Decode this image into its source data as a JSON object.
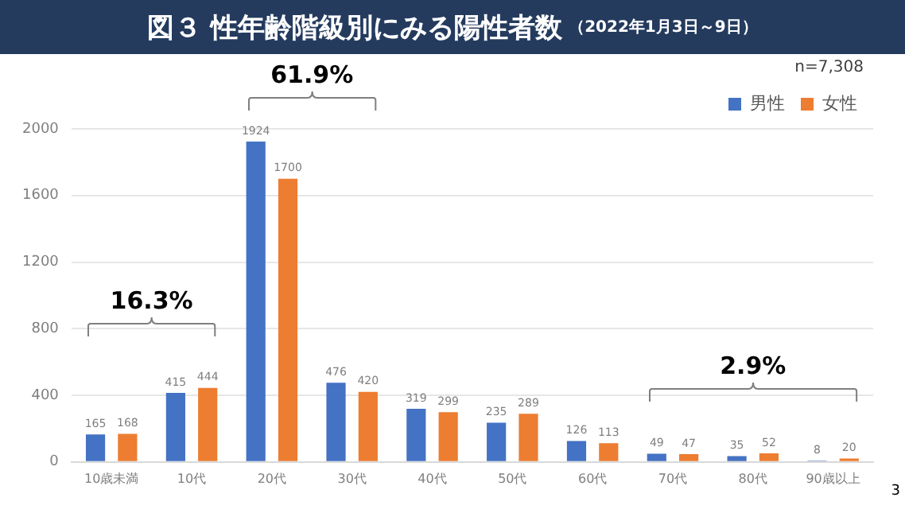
{
  "chart_data": {
    "type": "bar",
    "title": "図３ 性年齢階級別にみる陽性者数",
    "subtitle": "（2022年1月3日～9日）",
    "categories": [
      "10歳未満",
      "10代",
      "20代",
      "30代",
      "40代",
      "50代",
      "60代",
      "70代",
      "80代",
      "90歳以上"
    ],
    "series": [
      {
        "name": "男性",
        "color": "#4472c4",
        "values": [
          165,
          415,
          1924,
          476,
          319,
          235,
          126,
          49,
          35,
          8
        ]
      },
      {
        "name": "女性",
        "color": "#ed7d31",
        "values": [
          168,
          444,
          1700,
          420,
          299,
          289,
          113,
          47,
          52,
          20
        ]
      }
    ],
    "ylim": [
      0,
      2000
    ],
    "yticks": [
      0,
      400,
      800,
      1200,
      1600,
      2000
    ],
    "grid": "y",
    "legend": "top right",
    "data_labels": true,
    "annotations": [
      "16.3%",
      "61.9%",
      "2.9%",
      "n=7,308",
      "3"
    ]
  }
}
